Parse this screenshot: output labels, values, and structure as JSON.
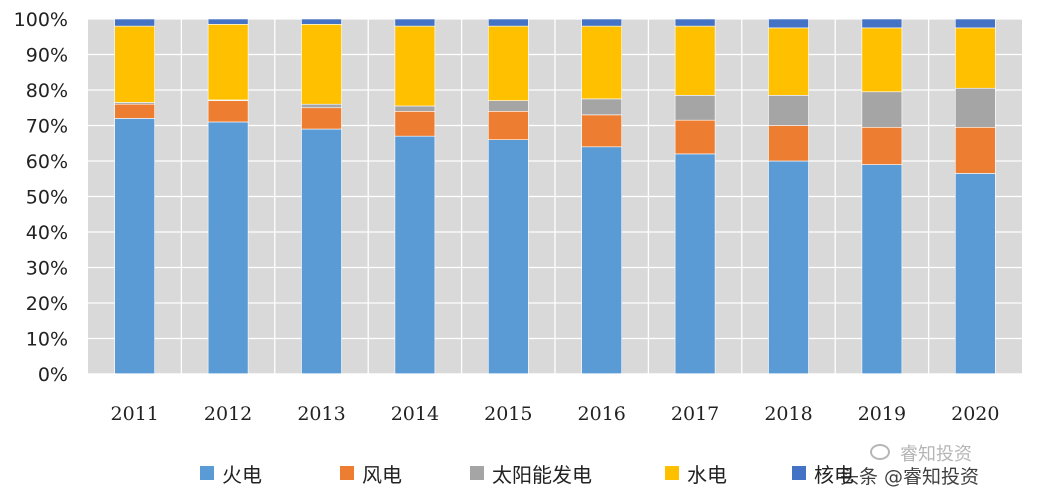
{
  "chart_data": {
    "type": "bar",
    "stacked": true,
    "categories": [
      "2011",
      "2012",
      "2013",
      "2014",
      "2015",
      "2016",
      "2017",
      "2018",
      "2019",
      "2020"
    ],
    "series": [
      {
        "name": "火电",
        "color": "#5b9bd5",
        "values": [
          72,
          71,
          69,
          67,
          66,
          64,
          62,
          60,
          59,
          56.5
        ]
      },
      {
        "name": "风电",
        "color": "#ed7d31",
        "values": [
          4,
          6,
          6,
          7,
          8,
          9,
          9.5,
          10,
          10.5,
          13
        ]
      },
      {
        "name": "太阳能发电",
        "color": "#a5a5a5",
        "values": [
          0.5,
          0.2,
          1,
          1.5,
          3,
          4.5,
          7,
          8.5,
          10,
          11
        ]
      },
      {
        "name": "水电",
        "color": "#ffc000",
        "values": [
          21.5,
          21.3,
          22.5,
          22.5,
          21,
          20.5,
          19.5,
          19,
          18,
          17
        ]
      },
      {
        "name": "核电",
        "color": "#4472c4",
        "values": [
          2,
          1.5,
          1.5,
          2,
          2,
          2,
          2,
          2.5,
          2.5,
          2.5
        ]
      }
    ],
    "y_ticks": [
      "0%",
      "10%",
      "20%",
      "30%",
      "40%",
      "50%",
      "60%",
      "70%",
      "80%",
      "90%",
      "100%"
    ],
    "ylim": [
      0,
      100
    ],
    "grid": true,
    "legend_position": "bottom",
    "background_color": "#d9d9d9"
  },
  "legend": [
    {
      "label": "火电",
      "color": "#5b9bd5"
    },
    {
      "label": "风电",
      "color": "#ed7d31"
    },
    {
      "label": "太阳能发电",
      "color": "#a5a5a5"
    },
    {
      "label": "水电",
      "color": "#ffc000"
    },
    {
      "label": "核电",
      "color": "#4472c4"
    }
  ],
  "watermark": {
    "top_text": "睿知投资",
    "bottom_text": "头条 @睿知投资"
  }
}
